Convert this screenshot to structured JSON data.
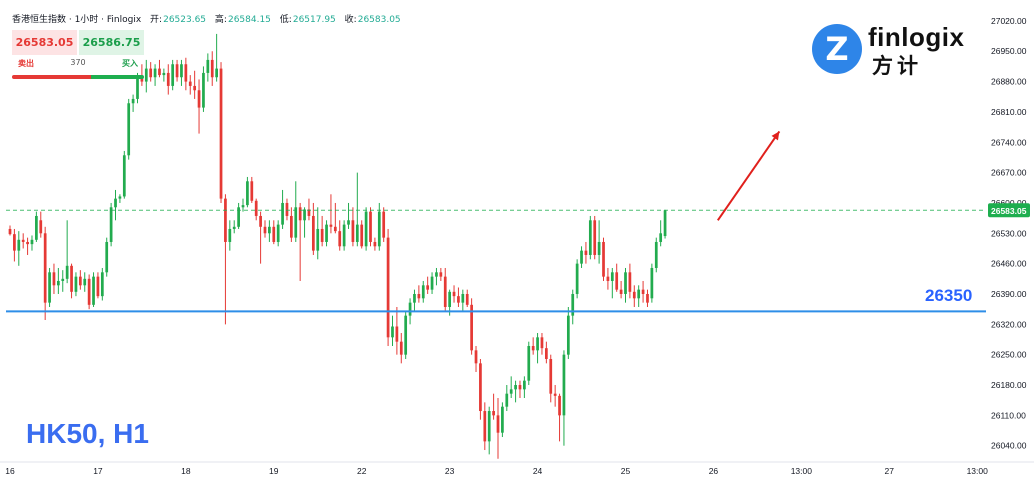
{
  "header": {
    "instrument": "香港恒生指数 · 1小时 · Finlogix",
    "open_label": "开:",
    "open": "26523.65",
    "high_label": "高:",
    "high": "26584.15",
    "low_label": "低:",
    "low": "26517.95",
    "close_label": "收:",
    "close": "26583.05"
  },
  "trade": {
    "sell_price": "26583.05",
    "buy_price": "26586.75",
    "sell_label": "卖出",
    "buy_label": "买入",
    "spread": "370"
  },
  "symbol_label": "HK50, H1",
  "logo": {
    "word": "finlogix",
    "cn": "方计"
  },
  "colors": {
    "up": "#22ab4e",
    "down": "#e53935",
    "support": "#2e8ee8",
    "level_text": "#2962ff",
    "current_price": "#1eae4f",
    "arrow": "#e0201c"
  },
  "chart_data": {
    "type": "candlestick",
    "y_axis": {
      "ticks": [
        27020,
        26950,
        26880,
        26810,
        26740,
        26670,
        26600,
        26530,
        26460,
        26390,
        26320,
        26250,
        26180,
        26110,
        26040
      ],
      "tick_labels": [
        "27020.00",
        "26950.00",
        "26880.00",
        "26810.00",
        "26740.00",
        "26670.00",
        "26600.00",
        "26530.00",
        "26460.00",
        "26390.00",
        "26320.00",
        "26250.00",
        "26180.00",
        "26110.00",
        "26040.00"
      ],
      "range": [
        26007,
        27059
      ]
    },
    "x_axis": {
      "labels": [
        "16",
        "17",
        "18",
        "19",
        "22",
        "23",
        "24",
        "25",
        "26",
        "13:00",
        "27",
        "13:00"
      ],
      "label_bar_index": [
        0,
        20,
        40,
        60,
        80,
        100,
        120,
        140,
        160,
        180,
        200,
        220
      ],
      "bars_per_day": 20,
      "total_slots": 222
    },
    "current_price": 26583.05,
    "current_price_label": "26583.05",
    "support_level": 26350,
    "support_label": "26350",
    "arrow": {
      "from_bar": 161,
      "from_price": 26560,
      "to_bar": 175,
      "to_price": 26765
    },
    "candles": [
      [
        26540,
        26548,
        26525,
        26528
      ],
      [
        26528,
        26540,
        26465,
        26490
      ],
      [
        26490,
        26535,
        26455,
        26515
      ],
      [
        26515,
        26530,
        26495,
        26510
      ],
      [
        26510,
        26520,
        26480,
        26505
      ],
      [
        26505,
        26525,
        26490,
        26515
      ],
      [
        26515,
        26580,
        26510,
        26570
      ],
      [
        26560,
        26580,
        26520,
        26530
      ],
      [
        26530,
        26545,
        26330,
        26370
      ],
      [
        26370,
        26450,
        26360,
        26440
      ],
      [
        26440,
        26460,
        26390,
        26410
      ],
      [
        26410,
        26450,
        26390,
        26420
      ],
      [
        26420,
        26445,
        26395,
        26425
      ],
      [
        26425,
        26560,
        26415,
        26455
      ],
      [
        26455,
        26460,
        26380,
        26395
      ],
      [
        26395,
        26440,
        26385,
        26430
      ],
      [
        26430,
        26445,
        26400,
        26410
      ],
      [
        26410,
        26440,
        26395,
        26425
      ],
      [
        26425,
        26435,
        26355,
        26365
      ],
      [
        26365,
        26440,
        26360,
        26430
      ],
      [
        26430,
        26440,
        26380,
        26385
      ],
      [
        26385,
        26450,
        26375,
        26440
      ],
      [
        26440,
        26520,
        26430,
        26510
      ],
      [
        26510,
        26600,
        26500,
        26590
      ],
      [
        26590,
        26630,
        26560,
        26610
      ],
      [
        26610,
        26620,
        26600,
        26615
      ],
      [
        26615,
        26720,
        26610,
        26710
      ],
      [
        26710,
        26840,
        26700,
        26830
      ],
      [
        26830,
        26850,
        26810,
        26840
      ],
      [
        26840,
        26900,
        26830,
        26890
      ],
      [
        26890,
        26920,
        26870,
        26880
      ],
      [
        26880,
        26930,
        26855,
        26910
      ],
      [
        26910,
        26925,
        26880,
        26890
      ],
      [
        26890,
        26920,
        26870,
        26910
      ],
      [
        26910,
        26930,
        26890,
        26895
      ],
      [
        26895,
        26910,
        26880,
        26900
      ],
      [
        26900,
        26920,
        26850,
        26870
      ],
      [
        26870,
        26930,
        26860,
        26920
      ],
      [
        26920,
        26930,
        26880,
        26890
      ],
      [
        26890,
        26930,
        26870,
        26920
      ],
      [
        26920,
        26935,
        26860,
        26880
      ],
      [
        26880,
        26895,
        26850,
        26870
      ],
      [
        26870,
        26905,
        26840,
        26860
      ],
      [
        26860,
        26885,
        26760,
        26820
      ],
      [
        26820,
        26915,
        26810,
        26900
      ],
      [
        26900,
        26945,
        26880,
        26930
      ],
      [
        26930,
        26950,
        26870,
        26890
      ],
      [
        26890,
        26990,
        26880,
        26910
      ],
      [
        26910,
        26925,
        26600,
        26610
      ],
      [
        26610,
        26620,
        26320,
        26510
      ],
      [
        26510,
        26560,
        26490,
        26540
      ],
      [
        26540,
        26560,
        26530,
        26545
      ],
      [
        26545,
        26600,
        26540,
        26590
      ],
      [
        26590,
        26610,
        26580,
        26595
      ],
      [
        26595,
        26660,
        26590,
        26650
      ],
      [
        26650,
        26660,
        26600,
        26605
      ],
      [
        26605,
        26610,
        26560,
        26570
      ],
      [
        26570,
        26580,
        26460,
        26545
      ],
      [
        26545,
        26560,
        26520,
        26530
      ],
      [
        26530,
        26560,
        26510,
        26545
      ],
      [
        26545,
        26560,
        26505,
        26510
      ],
      [
        26510,
        26560,
        26500,
        26550
      ],
      [
        26550,
        26630,
        26540,
        26600
      ],
      [
        26600,
        26610,
        26560,
        26570
      ],
      [
        26570,
        26590,
        26510,
        26520
      ],
      [
        26520,
        26650,
        26510,
        26590
      ],
      [
        26590,
        26600,
        26420,
        26560
      ],
      [
        26560,
        26590,
        26520,
        26585
      ],
      [
        26585,
        26610,
        26560,
        26570
      ],
      [
        26570,
        26600,
        26480,
        26490
      ],
      [
        26490,
        26590,
        26470,
        26540
      ],
      [
        26540,
        26570,
        26500,
        26510
      ],
      [
        26510,
        26560,
        26500,
        26550
      ],
      [
        26550,
        26620,
        26530,
        26545
      ],
      [
        26545,
        26600,
        26530,
        26535
      ],
      [
        26535,
        26560,
        26490,
        26500
      ],
      [
        26500,
        26560,
        26490,
        26550
      ],
      [
        26550,
        26600,
        26540,
        26560
      ],
      [
        26560,
        26590,
        26500,
        26510
      ],
      [
        26510,
        26670,
        26500,
        26550
      ],
      [
        26550,
        26560,
        26495,
        26500
      ],
      [
        26500,
        26590,
        26490,
        26580
      ],
      [
        26580,
        26590,
        26500,
        26510
      ],
      [
        26510,
        26520,
        26490,
        26500
      ],
      [
        26500,
        26600,
        26490,
        26580
      ],
      [
        26580,
        26590,
        26510,
        26520
      ],
      [
        26520,
        26540,
        26270,
        26290
      ],
      [
        26290,
        26340,
        26270,
        26315
      ],
      [
        26315,
        26360,
        26250,
        26280
      ],
      [
        26280,
        26300,
        26230,
        26250
      ],
      [
        26250,
        26350,
        26240,
        26340
      ],
      [
        26340,
        26380,
        26320,
        26370
      ],
      [
        26370,
        26400,
        26350,
        26390
      ],
      [
        26390,
        26410,
        26370,
        26380
      ],
      [
        26380,
        26420,
        26370,
        26410
      ],
      [
        26410,
        26430,
        26390,
        26400
      ],
      [
        26400,
        26440,
        26390,
        26430
      ],
      [
        26430,
        26450,
        26410,
        26440
      ],
      [
        26440,
        26450,
        26420,
        26430
      ],
      [
        26430,
        26450,
        26350,
        26360
      ],
      [
        26360,
        26400,
        26340,
        26395
      ],
      [
        26395,
        26410,
        26370,
        26385
      ],
      [
        26385,
        26405,
        26360,
        26370
      ],
      [
        26370,
        26400,
        26350,
        26390
      ],
      [
        26390,
        26400,
        26360,
        26365
      ],
      [
        26365,
        26380,
        26250,
        26260
      ],
      [
        26260,
        26270,
        26210,
        26230
      ],
      [
        26230,
        26240,
        26100,
        26120
      ],
      [
        26120,
        26140,
        26030,
        26050
      ],
      [
        26050,
        26130,
        26020,
        26120
      ],
      [
        26120,
        26160,
        26100,
        26110
      ],
      [
        26110,
        26150,
        26010,
        26070
      ],
      [
        26070,
        26140,
        26060,
        26130
      ],
      [
        26130,
        26180,
        26120,
        26160
      ],
      [
        26160,
        26200,
        26150,
        26170
      ],
      [
        26170,
        26190,
        26140,
        26180
      ],
      [
        26180,
        26190,
        26150,
        26170
      ],
      [
        26170,
        26200,
        26150,
        26190
      ],
      [
        26190,
        26280,
        26180,
        26270
      ],
      [
        26270,
        26290,
        26250,
        26260
      ],
      [
        26260,
        26300,
        26230,
        26290
      ],
      [
        26290,
        26300,
        26250,
        26265
      ],
      [
        26265,
        26280,
        26230,
        26240
      ],
      [
        26240,
        26250,
        26140,
        26160
      ],
      [
        26160,
        26180,
        26130,
        26155
      ],
      [
        26155,
        26160,
        26050,
        26110
      ],
      [
        26110,
        26260,
        26040,
        26250
      ],
      [
        26250,
        26360,
        26240,
        26340
      ],
      [
        26340,
        26400,
        26320,
        26390
      ],
      [
        26390,
        26470,
        26380,
        26460
      ],
      [
        26460,
        26500,
        26450,
        26490
      ],
      [
        26490,
        26510,
        26460,
        26480
      ],
      [
        26480,
        26570,
        26470,
        26560
      ],
      [
        26560,
        26570,
        26470,
        26480
      ],
      [
        26480,
        26560,
        26460,
        26510
      ],
      [
        26510,
        26520,
        26420,
        26430
      ],
      [
        26430,
        26450,
        26400,
        26420
      ],
      [
        26420,
        26450,
        26380,
        26440
      ],
      [
        26440,
        26460,
        26395,
        26400
      ],
      [
        26400,
        26420,
        26380,
        26390
      ],
      [
        26390,
        26450,
        26370,
        26440
      ],
      [
        26440,
        26460,
        26380,
        26395
      ],
      [
        26395,
        26410,
        26360,
        26380
      ],
      [
        26380,
        26410,
        26360,
        26400
      ],
      [
        26400,
        26420,
        26370,
        26390
      ],
      [
        26390,
        26400,
        26360,
        26370
      ],
      [
        26380,
        26460,
        26370,
        26450
      ],
      [
        26450,
        26520,
        26440,
        26510
      ],
      [
        26510,
        26560,
        26500,
        26530
      ],
      [
        26523.65,
        26584.15,
        26517.95,
        26583.05
      ]
    ]
  }
}
